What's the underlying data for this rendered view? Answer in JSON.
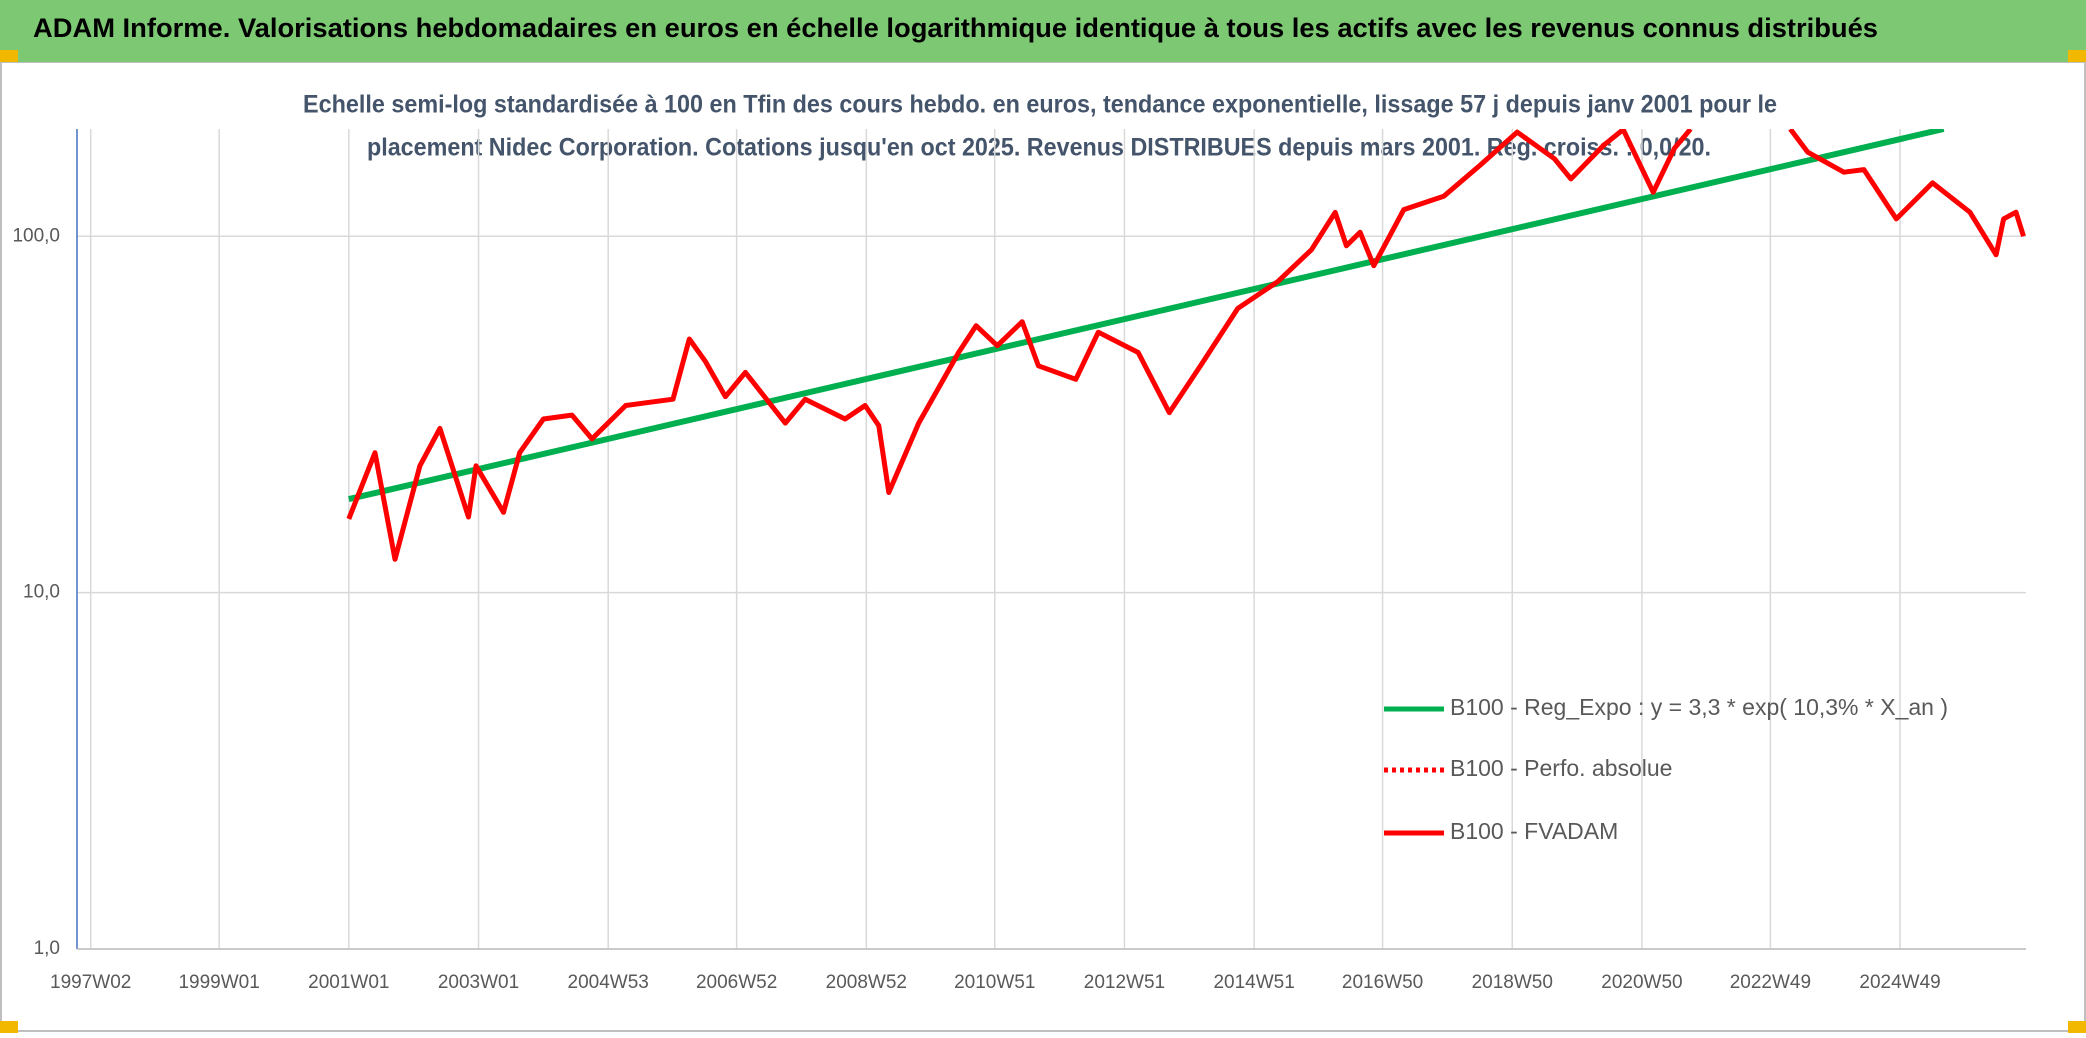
{
  "chart_data": {
    "type": "line",
    "title": "ADAM Informe. Valorisations hebdomadaires en euros en échelle logarithmique identique à tous les actifs avec les revenus connus distribués",
    "subtitle": [
      "Echelle semi-log standardisée à 100 en Tfin des cours hebdo. en euros, tendance exponentielle, lissage 57 j depuis janv 2001 pour le",
      "placement Nidec Corporation. Cotations jusqu'en oct 2025. Revenus DISTRIBUES depuis mars 2001. Reg. croiss. : 0,0/20."
    ],
    "log_scale": true,
    "grid": true,
    "legend": "right",
    "xlim": [
      "1996W43",
      "2026W46"
    ],
    "xticks": [
      "1997W02",
      "1999W01",
      "2001W01",
      "2003W01",
      "2004W53",
      "2006W52",
      "2008W52",
      "2010W51",
      "2012W51",
      "2014W51",
      "2016W50",
      "2018W50",
      "2020W50",
      "2022W49",
      "2024W49"
    ],
    "ylim": [
      1,
      200
    ],
    "yticks": [
      {
        "value": 1,
        "label": "1,0"
      },
      {
        "value": 10,
        "label": "10,0"
      },
      {
        "value": 100,
        "label": "100,0"
      }
    ],
    "series": [
      {
        "name": "B100 - Reg_Expo : y = 3,3 * exp( 10,3% *  X_an )",
        "color": "#00b050",
        "style": "solid",
        "x": [
          "2001W01",
          "2025W32"
        ],
        "values": [
          18.3,
          200
        ]
      },
      {
        "name": "B100 - Perfo. absolue",
        "color": "#ff0000",
        "style": "dotted",
        "x": [],
        "values": []
      },
      {
        "name": "B100 - FVADAM",
        "color": "#ff0000",
        "style": "solid",
        "x": [
          "2001W01",
          "2001W22",
          "2001W38",
          "2002W06",
          "2002W22",
          "2002W45",
          "2002W51",
          "2003W21",
          "2003W34",
          "2004W01",
          "2004W24",
          "2004W40",
          "2005W15",
          "2006W01",
          "2006W14",
          "2006W27",
          "2006W43",
          "2007W07",
          "2007W39",
          "2008W03",
          "2008W35",
          "2008W51",
          "2009W10",
          "2009W18",
          "2009W42",
          "2010W22",
          "2010W36",
          "2011W01",
          "2011W21",
          "2011W34",
          "2012W12",
          "2012W30",
          "2013W10",
          "2013W35",
          "2014W08",
          "2014W38",
          "2015W18",
          "2015W45",
          "2016W12",
          "2016W21",
          "2016W32",
          "2016W43",
          "2017W15",
          "2017W47",
          "2018W24",
          "2019W02",
          "2019W32",
          "2019W45",
          "2020W19",
          "2020W35",
          "2021W07",
          "2021W24",
          "2021W37",
          null,
          "2023W13",
          "2023W27",
          "2024W04",
          "2024W20",
          "2024W46",
          "2025W23",
          "2026W01",
          "2026W22",
          "2026W28",
          "2026W38",
          "2026W44"
        ],
        "values": [
          16.1,
          24.7,
          12.4,
          22.7,
          28.9,
          16.3,
          22.7,
          16.8,
          24.7,
          30.7,
          31.5,
          27.0,
          33.5,
          34.9,
          51.5,
          44.5,
          35.5,
          41.5,
          29.9,
          34.9,
          30.7,
          33.5,
          29.4,
          19.1,
          29.9,
          47.2,
          56.1,
          49.3,
          57.6,
          43.3,
          39.7,
          53.8,
          47.2,
          32.0,
          43.3,
          62.8,
          74.6,
          91.7,
          116.7,
          94.1,
          102.6,
          82.7,
          118.8,
          129.5,
          158.0,
          196,
          164.9,
          144.9,
          179.7,
          199.4,
          132.9,
          176.6,
          200,
          null,
          200,
          172.2,
          151.3,
          153.9,
          111.9,
          141.2,
          116.8,
          88.7,
          111.9,
          116.8,
          100
        ]
      }
    ]
  }
}
